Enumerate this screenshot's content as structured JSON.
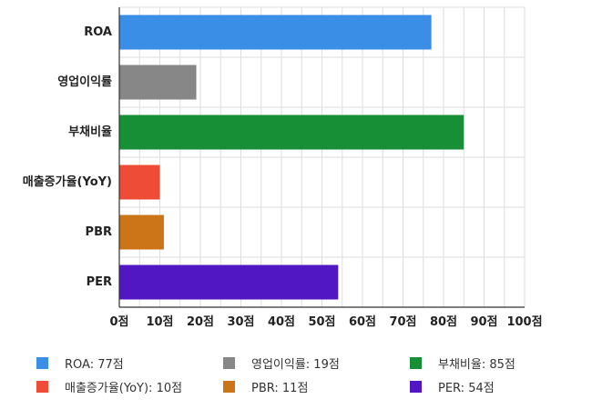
{
  "chart_data": {
    "type": "bar",
    "orientation": "horizontal",
    "categories": [
      "ROA",
      "영업이익률",
      "부채비율",
      "매출증가율(YoY)",
      "PBR",
      "PER"
    ],
    "values": [
      77,
      19,
      85,
      10,
      11,
      54
    ],
    "colors": [
      "#3a8ee6",
      "#878787",
      "#178f36",
      "#ee4c36",
      "#cc7518",
      "#5017c2"
    ],
    "xlim": [
      0,
      100
    ],
    "xticks": [
      0,
      10,
      20,
      30,
      40,
      50,
      60,
      70,
      80,
      90,
      100
    ],
    "tick_suffix": "점",
    "grid": true,
    "legend_position": "bottom",
    "legend": [
      "ROA: 77점",
      "영업이익률: 19점",
      "부채비율: 85점",
      "매출증가율(YoY): 10점",
      "PBR: 11점",
      "PER: 54점"
    ]
  }
}
